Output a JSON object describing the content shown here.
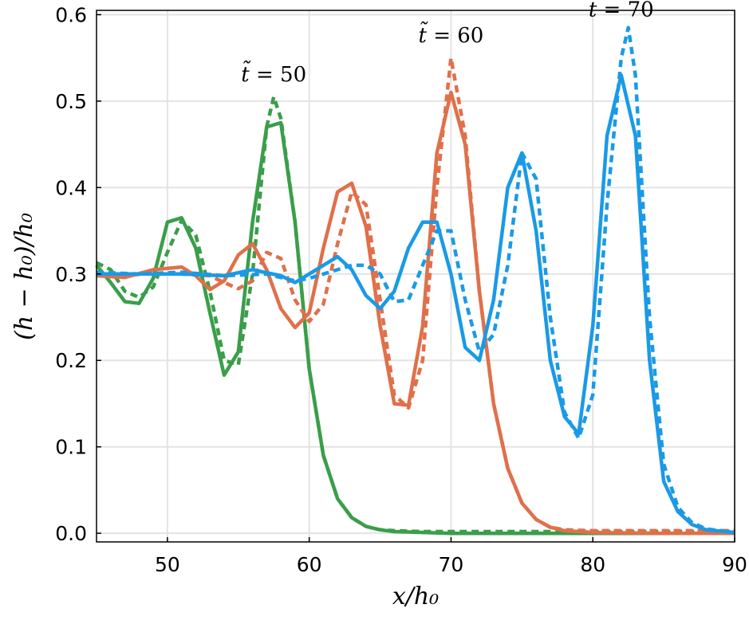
{
  "chart_data": {
    "type": "line",
    "title": "",
    "xlabel": "x/h₀",
    "ylabel": "(h − h₀)/h₀",
    "xlim": [
      45,
      90
    ],
    "ylim": [
      -0.01,
      0.605
    ],
    "xticks": [
      50,
      60,
      70,
      80,
      90
    ],
    "yticks": [
      0.0,
      0.1,
      0.2,
      0.3,
      0.4,
      0.5,
      0.6
    ],
    "xtick_labels": [
      "50",
      "60",
      "70",
      "80",
      "90"
    ],
    "ytick_labels": [
      "0.0",
      "0.1",
      "0.2",
      "0.3",
      "0.4",
      "0.5",
      "0.6"
    ],
    "grid": true,
    "legend": "none",
    "annotations": [
      {
        "prefix": "t̃",
        "text": " = 50",
        "x": 57.5,
        "y": 0.51
      },
      {
        "prefix": "t̃",
        "text": " = 60",
        "x": 70.0,
        "y": 0.555
      },
      {
        "prefix": "t̃",
        "text": " = 70",
        "x": 82.0,
        "y": 0.585
      }
    ],
    "series": [
      {
        "color": "#3a9e4a",
        "dash": "solid",
        "x": [
          45,
          46,
          47,
          48,
          49,
          50,
          51,
          52,
          53,
          54,
          55,
          56,
          57,
          58,
          59,
          60,
          61,
          62,
          63,
          64,
          65,
          66,
          68,
          70,
          75,
          80,
          85,
          90
        ],
        "y": [
          0.31,
          0.29,
          0.268,
          0.266,
          0.295,
          0.36,
          0.365,
          0.33,
          0.255,
          0.183,
          0.21,
          0.36,
          0.47,
          0.475,
          0.36,
          0.19,
          0.09,
          0.04,
          0.018,
          0.008,
          0.004,
          0.002,
          0.001,
          0.0,
          0.0,
          0.0,
          0.0,
          0.0
        ]
      },
      {
        "color": "#3a9e4a",
        "dash": "dashed",
        "x": [
          45,
          46,
          47,
          48,
          49,
          50,
          51,
          52,
          53,
          54,
          55,
          56,
          57,
          57.5,
          58,
          59,
          60,
          61,
          62,
          63,
          64,
          65,
          66,
          68,
          70,
          75,
          80,
          85,
          90
        ],
        "y": [
          0.313,
          0.305,
          0.28,
          0.273,
          0.285,
          0.325,
          0.362,
          0.345,
          0.28,
          0.2,
          0.195,
          0.3,
          0.47,
          0.505,
          0.48,
          0.36,
          0.19,
          0.09,
          0.04,
          0.018,
          0.008,
          0.004,
          0.003,
          0.002,
          0.002,
          0.002,
          0.002,
          0.002,
          0.002
        ]
      },
      {
        "color": "#e0704a",
        "dash": "solid",
        "x": [
          45,
          47,
          49,
          51,
          52,
          53,
          54,
          55,
          56,
          57,
          58,
          59,
          60,
          61,
          62,
          63,
          64,
          65,
          66,
          67,
          68,
          69,
          70,
          71,
          72,
          73,
          74,
          75,
          76,
          77,
          78,
          80,
          85,
          90
        ],
        "y": [
          0.298,
          0.296,
          0.305,
          0.308,
          0.298,
          0.282,
          0.292,
          0.322,
          0.335,
          0.305,
          0.26,
          0.238,
          0.255,
          0.33,
          0.395,
          0.405,
          0.355,
          0.24,
          0.15,
          0.148,
          0.24,
          0.44,
          0.51,
          0.45,
          0.28,
          0.15,
          0.075,
          0.035,
          0.016,
          0.007,
          0.003,
          0.001,
          0.0,
          0.0
        ]
      },
      {
        "color": "#e0704a",
        "dash": "dashed",
        "x": [
          45,
          47,
          49,
          51,
          53,
          54,
          55,
          56,
          57,
          58,
          59,
          60,
          61,
          62,
          63,
          64,
          65,
          66,
          67,
          68,
          69,
          70,
          71,
          72,
          73,
          74,
          75,
          76,
          77,
          78,
          80,
          85,
          90
        ],
        "y": [
          0.302,
          0.298,
          0.301,
          0.3,
          0.298,
          0.29,
          0.283,
          0.292,
          0.325,
          0.318,
          0.27,
          0.245,
          0.265,
          0.335,
          0.395,
          0.38,
          0.27,
          0.16,
          0.145,
          0.2,
          0.4,
          0.55,
          0.46,
          0.28,
          0.15,
          0.075,
          0.035,
          0.016,
          0.007,
          0.004,
          0.003,
          0.003,
          0.003
        ]
      },
      {
        "color": "#1a9ae6",
        "dash": "solid",
        "x": [
          45,
          48,
          51,
          54,
          56,
          58,
          59,
          61,
          62,
          63,
          64,
          65,
          66,
          67,
          68,
          69,
          70,
          71,
          72,
          73,
          74,
          75,
          76,
          77,
          78,
          79,
          80,
          81,
          82,
          83,
          84,
          85,
          86,
          87,
          88,
          90
        ],
        "y": [
          0.3,
          0.3,
          0.3,
          0.298,
          0.305,
          0.298,
          0.29,
          0.31,
          0.32,
          0.305,
          0.275,
          0.26,
          0.28,
          0.33,
          0.36,
          0.36,
          0.3,
          0.215,
          0.2,
          0.27,
          0.4,
          0.44,
          0.35,
          0.2,
          0.135,
          0.115,
          0.24,
          0.46,
          0.53,
          0.46,
          0.2,
          0.06,
          0.025,
          0.01,
          0.004,
          0.001
        ]
      },
      {
        "color": "#1a9ae6",
        "dash": "dashed",
        "x": [
          45,
          48,
          51,
          54,
          57,
          59,
          60,
          61,
          62,
          63,
          64,
          65,
          66,
          67,
          68,
          69,
          70,
          71,
          72,
          73,
          74,
          75,
          76,
          77,
          78,
          79,
          80,
          81,
          82,
          82.5,
          83,
          84,
          85,
          86,
          87,
          88,
          90
        ],
        "y": [
          0.302,
          0.3,
          0.302,
          0.298,
          0.3,
          0.292,
          0.295,
          0.3,
          0.305,
          0.31,
          0.31,
          0.3,
          0.268,
          0.27,
          0.31,
          0.35,
          0.35,
          0.27,
          0.21,
          0.23,
          0.31,
          0.44,
          0.41,
          0.25,
          0.14,
          0.11,
          0.16,
          0.38,
          0.55,
          0.585,
          0.53,
          0.25,
          0.08,
          0.03,
          0.012,
          0.005,
          0.001
        ]
      }
    ]
  }
}
